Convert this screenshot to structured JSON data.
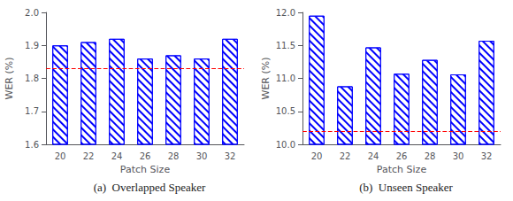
{
  "chart_data": [
    {
      "type": "bar",
      "categories": [
        20,
        22,
        24,
        26,
        28,
        30,
        32
      ],
      "values": [
        1.9,
        1.91,
        1.92,
        1.86,
        1.87,
        1.86,
        1.92
      ],
      "color": "#0000FF",
      "xlabel": "Patch Size",
      "ylabel": "WER (%)",
      "ylim": [
        1.6,
        2.0
      ],
      "yticks": [
        1.6,
        1.7,
        1.8,
        1.9,
        {
          "value": 2.0,
          "label": "2.0"
        }
      ],
      "reference_line": {
        "value": 1.83,
        "color": "#FF0000",
        "line_style": "dashed"
      },
      "annotation": "(a)  Overlapped Speaker",
      "grid": false
    },
    {
      "type": "bar",
      "categories": [
        20,
        22,
        24,
        26,
        28,
        30,
        32
      ],
      "values": [
        11.95,
        10.88,
        11.47,
        11.07,
        11.28,
        11.06,
        11.57
      ],
      "color": "#0000FF",
      "xlabel": "Patch Size",
      "ylabel": "WER (%)",
      "ylim": [
        10.0,
        12.0
      ],
      "yticks": [
        {
          "value": 10.0,
          "label": "10.0"
        },
        10.5,
        {
          "value": 11.0,
          "label": "11.0"
        },
        11.5,
        {
          "value": 12.0,
          "label": "12.0"
        }
      ],
      "reference_line": {
        "value": 10.2,
        "color": "#FF0000",
        "line_style": "dashed"
      },
      "annotation": "(b)  Unseen Speaker",
      "grid": false
    }
  ]
}
